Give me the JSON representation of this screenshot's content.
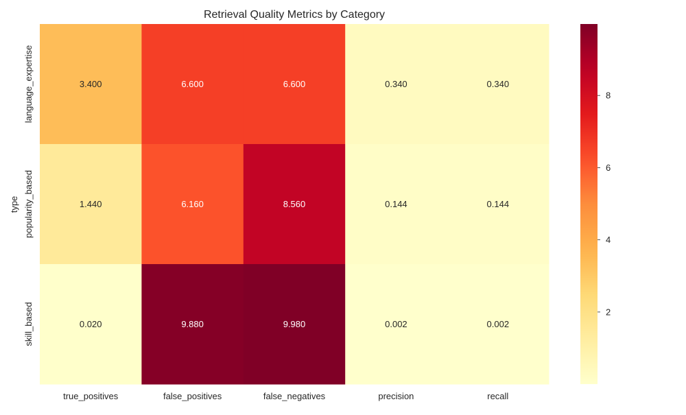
{
  "chart_data": {
    "type": "heatmap",
    "title": "Retrieval Quality Metrics by Category",
    "xlabel": "",
    "ylabel": "type",
    "columns": [
      "true_positives",
      "false_positives",
      "false_negatives",
      "precision",
      "recall"
    ],
    "rows": [
      "language_expertise",
      "popularity_based",
      "skill_based"
    ],
    "values": [
      [
        3.4,
        6.6,
        6.6,
        0.34,
        0.34
      ],
      [
        1.44,
        6.16,
        8.56,
        0.144,
        0.144
      ],
      [
        0.02,
        9.88,
        9.98,
        0.002,
        0.002
      ]
    ],
    "cell_labels": [
      [
        "3.400",
        "6.600",
        "6.600",
        "0.340",
        "0.340"
      ],
      [
        "1.440",
        "6.160",
        "8.560",
        "0.144",
        "0.144"
      ],
      [
        "0.020",
        "9.880",
        "9.980",
        "0.002",
        "0.002"
      ]
    ],
    "colormap": "YlOrRd",
    "vmin": 0.002,
    "vmax": 9.98,
    "colorbar_ticks": [
      2,
      4,
      6,
      8
    ],
    "colorbar_tick_labels": [
      "2",
      "4",
      "6",
      "8"
    ],
    "annotated": true,
    "grid": false
  }
}
